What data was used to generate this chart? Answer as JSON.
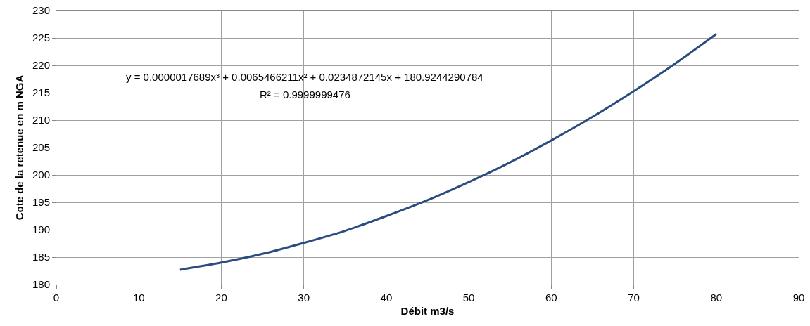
{
  "chart_data": {
    "type": "line",
    "xlabel": "Débit m3/s",
    "ylabel": "Cote de la retenue en m NGA",
    "x": [
      15,
      20,
      25,
      30,
      35,
      40,
      45,
      50,
      55,
      60,
      65,
      70,
      75,
      80
    ],
    "series": [
      {
        "color": "#2b4c7e",
        "values": [
          182.7,
          184.0,
          185.6,
          187.6,
          189.8,
          192.5,
          195.4,
          198.7,
          202.3,
          206.3,
          210.6,
          215.3,
          220.3,
          225.7
        ]
      }
    ],
    "xlim": [
      0,
      90
    ],
    "xticks": [
      0,
      10,
      20,
      30,
      40,
      50,
      60,
      70,
      80,
      90
    ],
    "ylim": [
      180,
      230
    ],
    "yticks": [
      180,
      185,
      190,
      195,
      200,
      205,
      210,
      215,
      220,
      225,
      230
    ],
    "grid": true,
    "marker": "none",
    "line_style": "solid",
    "annotations": [
      "y = 0.0000017689x³ + 0.0065466211x² + 0.0234872145x + 180.9244290784",
      "R² = 0.9999999476"
    ]
  }
}
